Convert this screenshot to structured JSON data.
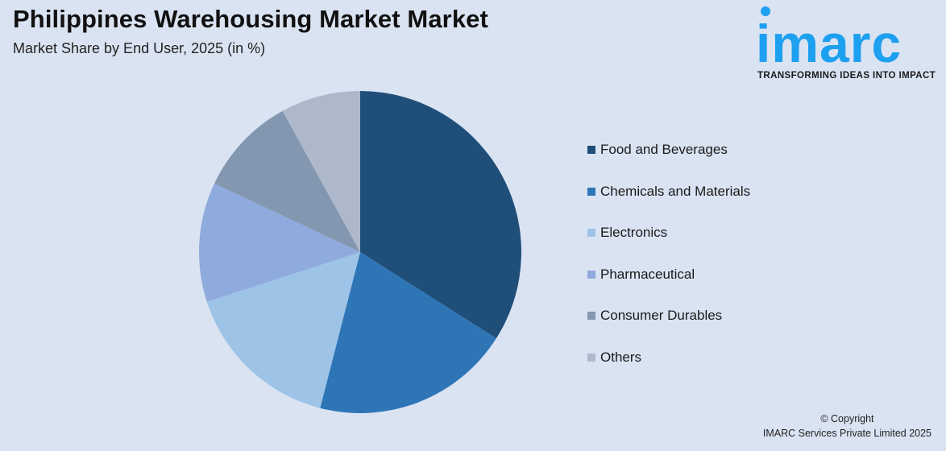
{
  "header": {
    "title": "Philippines Warehousing Market Market",
    "subtitle": "Market Share by End User, 2025 (in %)"
  },
  "logo": {
    "word": "imarc",
    "tagline": "TRANSFORMING IDEAS INTO IMPACT",
    "color": "#1ea0f0"
  },
  "footer": {
    "line1": "© Copyright",
    "line2": "IMARC Services Private Limited 2025"
  },
  "chart_data": {
    "type": "pie",
    "title": "Philippines Warehousing Market Market",
    "subtitle": "Market Share by End User, 2025 (in %)",
    "categories": [
      "Food and Beverages",
      "Chemicals and Materials",
      "Electronics",
      "Pharmaceutical",
      "Consumer Durables",
      "Others"
    ],
    "values": [
      34,
      20,
      16,
      12,
      10,
      8
    ],
    "colors": [
      "#1f4e79",
      "#2e75b6",
      "#9dc3e6",
      "#8faadc",
      "#8497b0",
      "#adb9ca"
    ],
    "start_angle": "12 o'clock",
    "direction": "clockwise",
    "legend_position": "right",
    "data_labels": false
  }
}
